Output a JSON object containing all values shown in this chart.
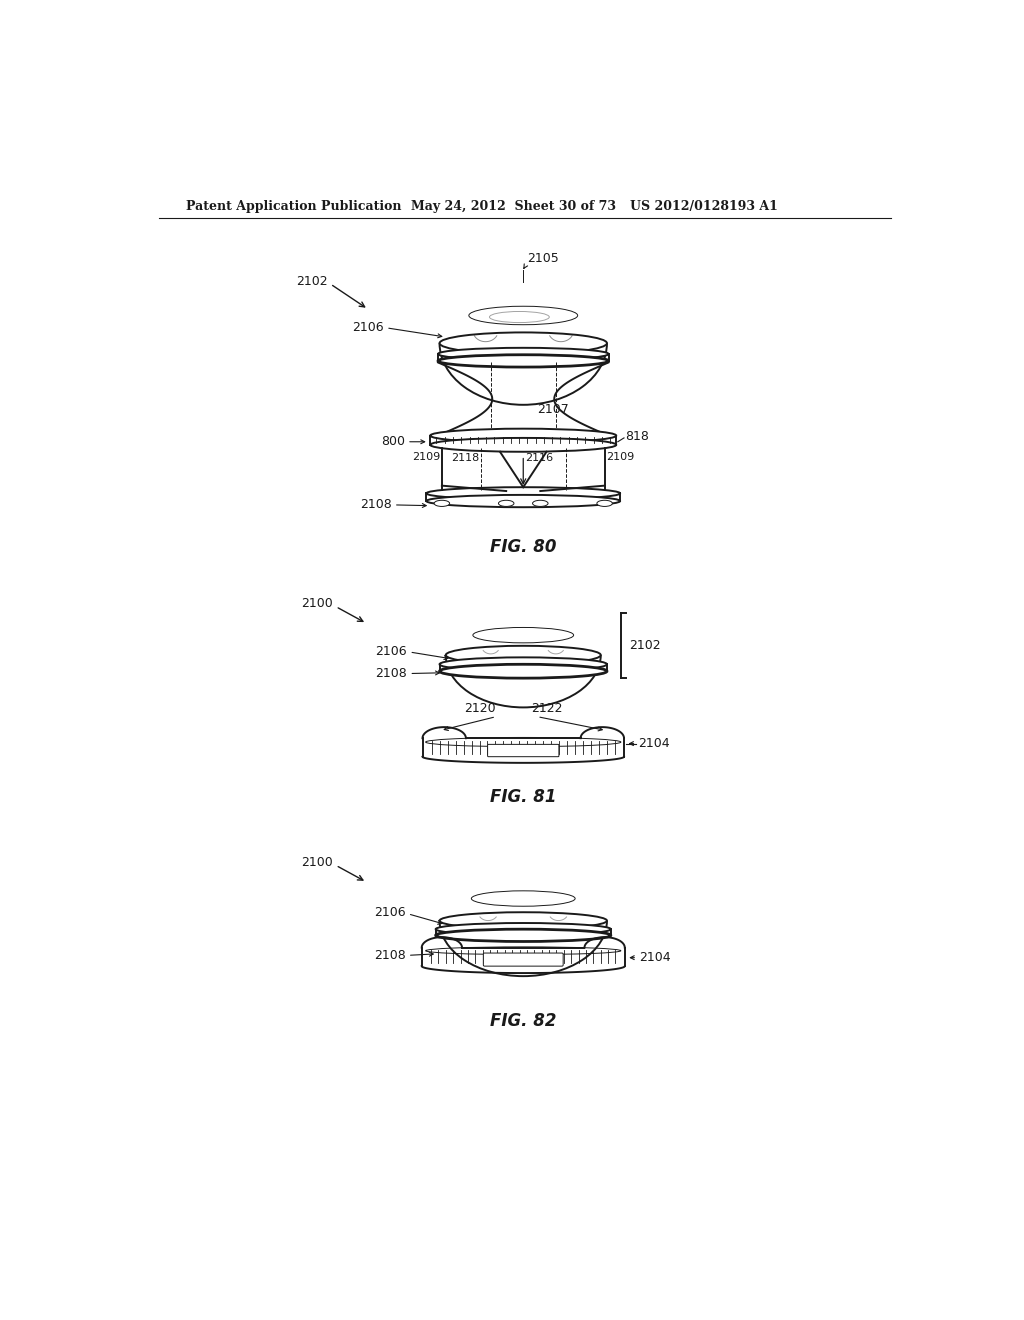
{
  "bg_color": "#ffffff",
  "header_left": "Patent Application Publication",
  "header_mid": "May 24, 2012  Sheet 30 of 73",
  "header_right": "US 2012/0128193 A1",
  "fig80_caption": "FIG. 80",
  "fig81_caption": "FIG. 81",
  "fig82_caption": "FIG. 82",
  "lw_main": 1.4,
  "lw_thin": 0.7,
  "lw_heavy": 2.0,
  "color_line": "#1a1a1a",
  "color_gray": "#888888"
}
